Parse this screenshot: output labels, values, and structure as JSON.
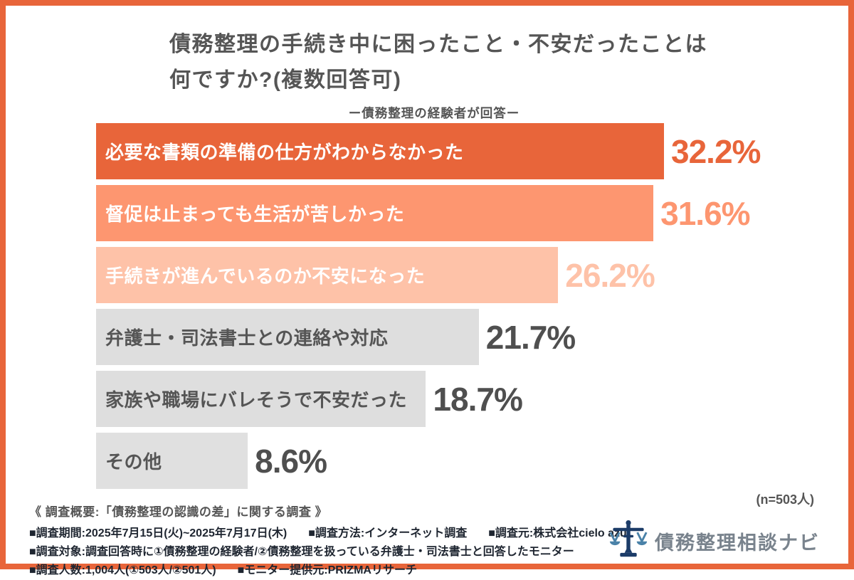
{
  "page": {
    "border_color": "#E8653A",
    "background_color": "#FFFFFF"
  },
  "header": {
    "title_line1": "債務整理の手続き中に困ったこと・不安だったことは",
    "title_line2": "何ですか?(複数回答可)",
    "subtitle": "ー債務整理の経験者が回答ー"
  },
  "chart_data": {
    "type": "bar",
    "orientation": "horizontal",
    "title": "債務整理の手続き中に困ったこと・不安だったことは何ですか?(複数回答可)",
    "subtitle": "ー債務整理の経験者が回答ー",
    "categories": [
      "必要な書類の準備の仕方がわからなかった",
      "督促は止まっても生活が苦しかった",
      "手続きが進んでいるのか不安になった",
      "弁護士・司法書士との連絡や対応",
      "家族や職場にバレそうで不安だった",
      "その他"
    ],
    "values": [
      32.2,
      31.6,
      26.2,
      21.7,
      18.7,
      8.6
    ],
    "value_labels": [
      "32.2%",
      "31.6%",
      "26.2%",
      "21.7%",
      "18.7%",
      "8.6%"
    ],
    "bar_colors": [
      "#E8653A",
      "#FD9670",
      "#FEC2A8",
      "#DEDEDE",
      "#DEDEDE",
      "#E0E0E0"
    ],
    "category_label_colors": [
      "#FFFFFF",
      "#FFFFFF",
      "#FFFFFF",
      "#555555",
      "#555555",
      "#555555"
    ],
    "value_label_colors": [
      "#E8653A",
      "#FD9670",
      "#FEC2A8",
      "#4F4F4F",
      "#4F4F4F",
      "#4F4F4F"
    ],
    "xlim": [
      0,
      32.2
    ],
    "grid": false,
    "legend": false,
    "sample_note": "(n=503人)"
  },
  "footer": {
    "heading": "《 調査概要:「債務整理の認識の差」に関する調査 》",
    "lines": [
      [
        "■調査期間:2025年7月15日(火)~2025年7月17日(木)",
        "■調査方法:インターネット調査",
        "■調査元:株式会社cielo azul"
      ],
      [
        "■調査対象:調査回答時に①債務整理の経験者/②債務整理を扱っている弁護士・司法書士と回答したモニター"
      ],
      [
        "■調査人数:1,004人(①503人/②501人)",
        "■モニター提供元:PRIZMAリサーチ"
      ]
    ],
    "logo": {
      "text": "債務整理相談ナビ",
      "icon": "balance-scale-icon",
      "icon_dark_color": "#1C3C68",
      "icon_light_color": "#4A82A8",
      "text_color": "#79838D"
    }
  }
}
